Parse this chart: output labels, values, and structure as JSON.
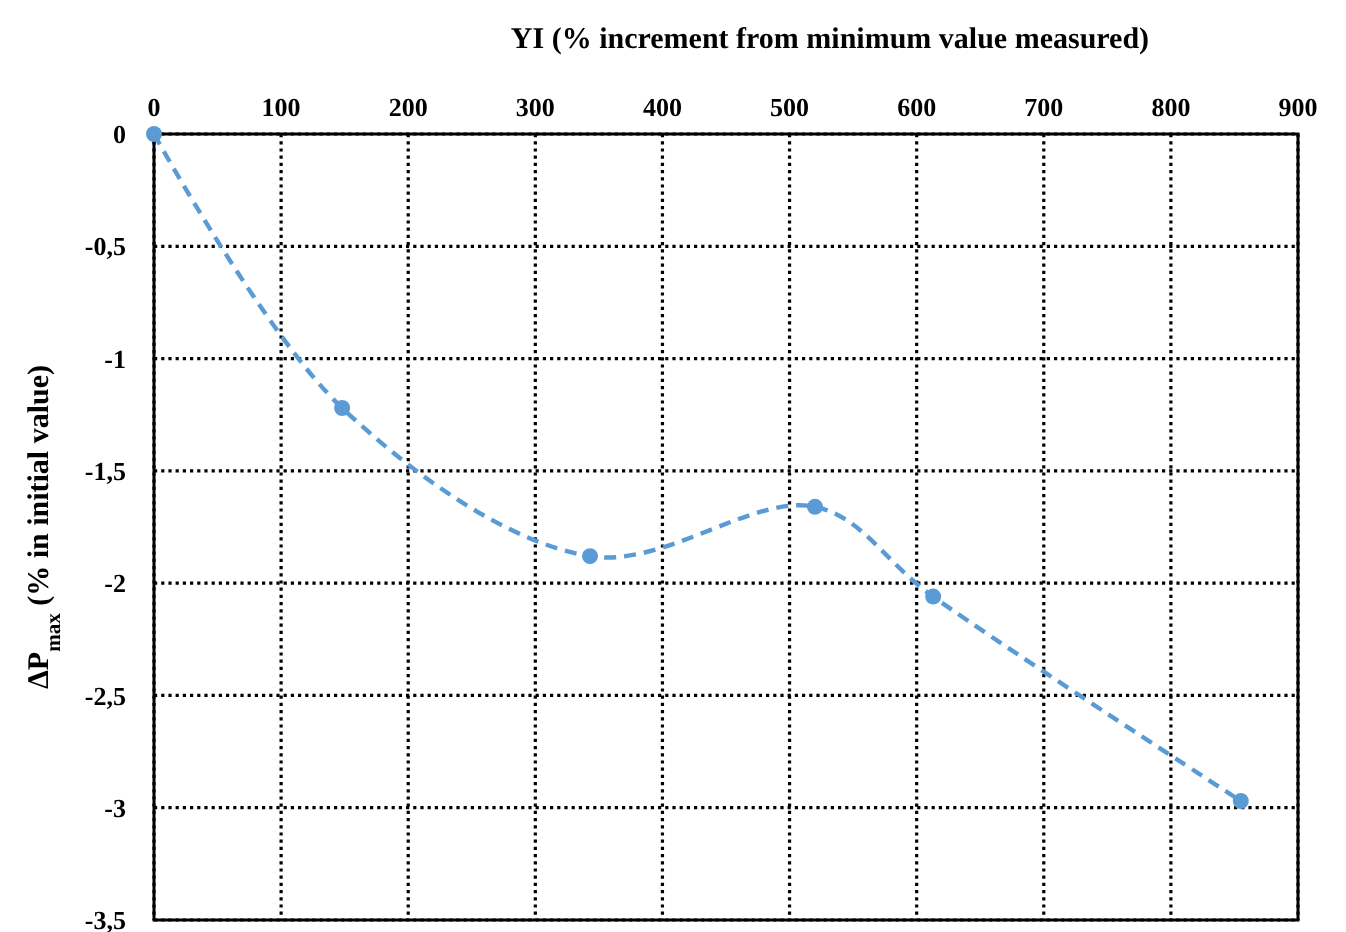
{
  "chart_data": {
    "type": "line",
    "xlabel": "YI (% increment from minimum value measured)",
    "ylabel": "ΔP$_{max}$ (% in initial value)",
    "x": [
      0,
      148,
      343,
      520,
      613,
      855
    ],
    "series": [
      {
        "color": "#5b9bd5",
        "values": [
          0,
          -1.22,
          -1.88,
          -1.66,
          -2.06,
          -2.97
        ]
      }
    ],
    "xlim": [
      0,
      900
    ],
    "xticks": [
      0,
      100,
      200,
      300,
      400,
      500,
      600,
      700,
      800,
      900
    ],
    "ylim": [
      -3.5,
      0
    ],
    "yticks": [
      0,
      {
        "value": -0.5,
        "label": "-0,5"
      },
      -1,
      {
        "value": -1.5,
        "label": "-1,5"
      },
      -2,
      {
        "value": -2.5,
        "label": "-2,5"
      },
      -3,
      {
        "value": -3.5,
        "label": "-3,5"
      }
    ],
    "grid": true,
    "marker": "circle",
    "line_style": "dashed"
  }
}
